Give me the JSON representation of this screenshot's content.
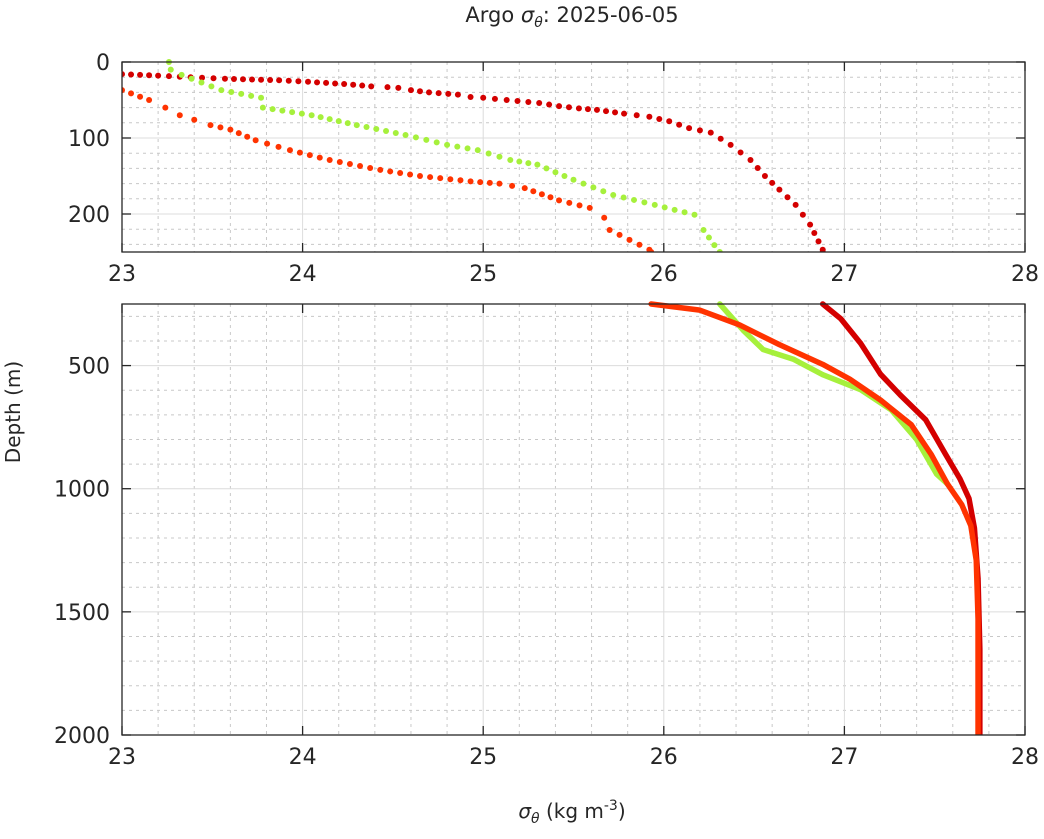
{
  "chart_data": {
    "type": "scatter",
    "title": {
      "prefix": "Argo ",
      "symbol": "σ",
      "sub": "θ",
      "suffix": ": 2025-06-05"
    },
    "xlabel": {
      "symbol": "σ",
      "sub": "θ",
      "text": " (kg m",
      "sup": "-3",
      "close": ")"
    },
    "ylabel": "Depth (m)",
    "xlim": [
      23,
      28
    ],
    "xticks": [
      "23",
      "24",
      "25",
      "26",
      "27",
      "28"
    ],
    "panels": [
      {
        "name": "upper",
        "ylim": [
          0,
          250
        ],
        "yticks": [
          0,
          100,
          200
        ],
        "ytick_labels": [
          "0",
          "100",
          "200"
        ],
        "minor_y_step": 20
      },
      {
        "name": "lower",
        "ylim": [
          250,
          2000
        ],
        "yticks": [
          500,
          1000,
          1500,
          2000
        ],
        "ytick_labels": [
          "500",
          "1000",
          "1500",
          "2000"
        ],
        "minor_y_step": 100
      }
    ],
    "grid": true,
    "series": [
      {
        "name": "profile-dark-red",
        "color": "#d40000",
        "points": [
          [
            23.0,
            16
          ],
          [
            23.1,
            17
          ],
          [
            23.2,
            18
          ],
          [
            23.38,
            20
          ],
          [
            23.57,
            22
          ],
          [
            23.87,
            24
          ],
          [
            24.03,
            26
          ],
          [
            24.23,
            29
          ],
          [
            24.38,
            32
          ],
          [
            24.47,
            33
          ],
          [
            24.53,
            34
          ],
          [
            24.6,
            37
          ],
          [
            24.7,
            40
          ],
          [
            24.86,
            43
          ],
          [
            24.93,
            46
          ],
          [
            25.0,
            47
          ],
          [
            25.13,
            50
          ],
          [
            25.31,
            54
          ],
          [
            25.42,
            58
          ],
          [
            25.53,
            61
          ],
          [
            25.63,
            63
          ],
          [
            25.78,
            68
          ],
          [
            25.92,
            72
          ],
          [
            26.03,
            78
          ],
          [
            26.14,
            87
          ],
          [
            26.26,
            93
          ],
          [
            26.37,
            109
          ],
          [
            26.48,
            129
          ],
          [
            26.56,
            150
          ],
          [
            26.64,
            168
          ],
          [
            26.73,
            188
          ],
          [
            26.81,
            214
          ],
          [
            26.88,
            247
          ],
          [
            26.88,
            250
          ],
          [
            26.98,
            310
          ],
          [
            27.09,
            410
          ],
          [
            27.2,
            535
          ],
          [
            27.31,
            620
          ],
          [
            27.45,
            720
          ],
          [
            27.56,
            860
          ],
          [
            27.64,
            960
          ],
          [
            27.69,
            1040
          ],
          [
            27.72,
            1160
          ],
          [
            27.74,
            1365
          ],
          [
            27.75,
            1650
          ],
          [
            27.75,
            2000
          ]
        ]
      },
      {
        "name": "profile-green",
        "color": "#a6f03c",
        "points": [
          [
            23.26,
            0
          ],
          [
            23.27,
            10
          ],
          [
            23.33,
            17
          ],
          [
            23.55,
            37
          ],
          [
            23.77,
            47
          ],
          [
            23.78,
            60
          ],
          [
            24.05,
            70
          ],
          [
            24.3,
            83
          ],
          [
            24.57,
            96
          ],
          [
            24.8,
            109
          ],
          [
            24.97,
            116
          ],
          [
            25.15,
            129
          ],
          [
            25.3,
            135
          ],
          [
            25.5,
            155
          ],
          [
            25.72,
            175
          ],
          [
            25.95,
            188
          ],
          [
            26.17,
            201
          ],
          [
            26.22,
            221
          ],
          [
            26.28,
            241
          ],
          [
            26.31,
            250
          ],
          [
            26.44,
            357
          ],
          [
            26.55,
            435
          ],
          [
            26.72,
            475
          ],
          [
            26.88,
            537
          ],
          [
            27.09,
            598
          ],
          [
            27.26,
            680
          ],
          [
            27.4,
            800
          ],
          [
            27.51,
            940
          ],
          [
            27.57,
            980
          ]
        ]
      },
      {
        "name": "profile-orange-red",
        "color": "#ff3300",
        "points": [
          [
            23.0,
            37
          ],
          [
            23.15,
            50
          ],
          [
            23.24,
            60
          ],
          [
            23.32,
            70
          ],
          [
            23.4,
            76
          ],
          [
            23.49,
            83
          ],
          [
            23.6,
            89
          ],
          [
            23.74,
            103
          ],
          [
            23.93,
            116
          ],
          [
            24.15,
            129
          ],
          [
            24.43,
            142
          ],
          [
            24.65,
            150
          ],
          [
            24.93,
            157
          ],
          [
            25.09,
            160
          ],
          [
            25.23,
            166
          ],
          [
            25.42,
            182
          ],
          [
            25.59,
            192
          ],
          [
            25.67,
            205
          ],
          [
            25.7,
            221
          ],
          [
            25.81,
            234
          ],
          [
            25.92,
            247
          ],
          [
            25.93,
            250
          ],
          [
            26.2,
            275
          ],
          [
            26.42,
            335
          ],
          [
            26.64,
            415
          ],
          [
            26.88,
            495
          ],
          [
            27.03,
            555
          ],
          [
            27.2,
            640
          ],
          [
            27.37,
            740
          ],
          [
            27.48,
            860
          ],
          [
            27.57,
            980
          ],
          [
            27.65,
            1065
          ],
          [
            27.7,
            1150
          ],
          [
            27.73,
            1290
          ],
          [
            27.74,
            1530
          ],
          [
            27.74,
            2000
          ]
        ]
      }
    ]
  }
}
